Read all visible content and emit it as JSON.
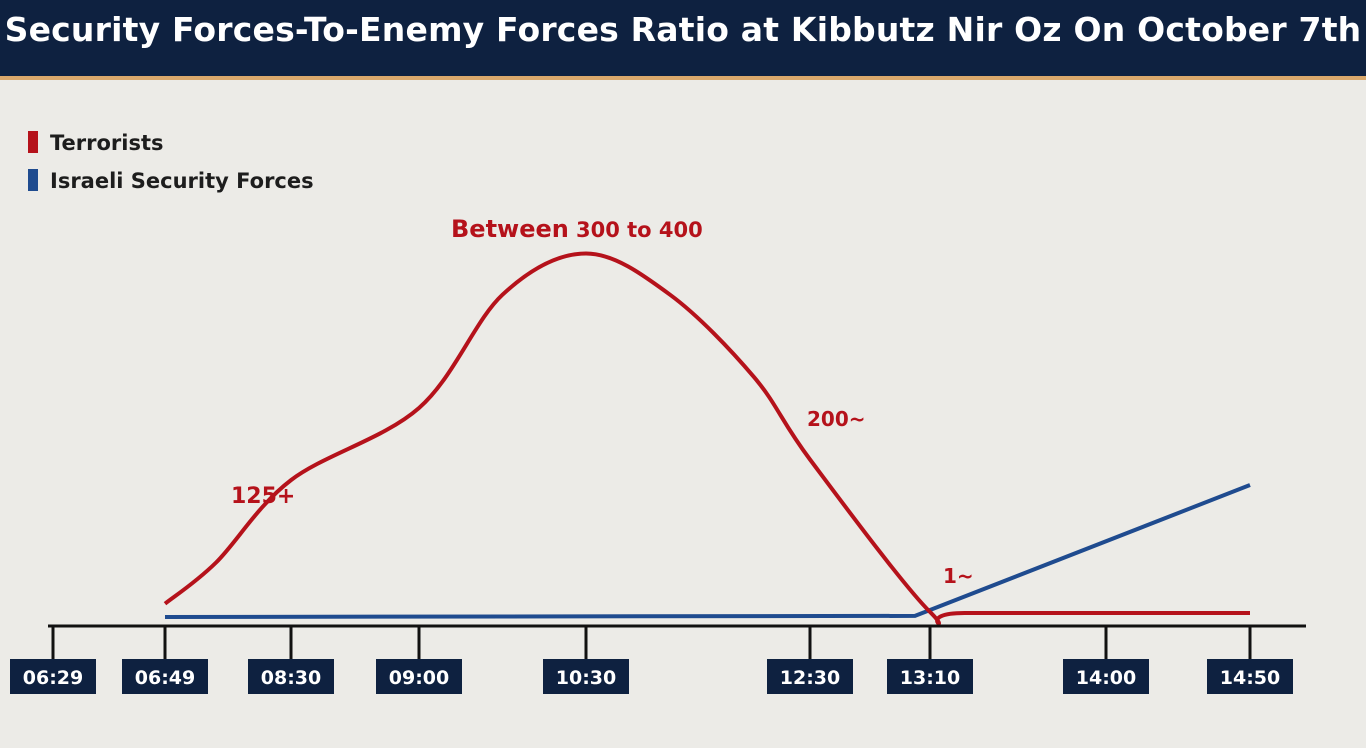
{
  "header": {
    "title": "Security Forces-To-Enemy Forces Ratio at Kibbutz Nir Oz On October 7th"
  },
  "colors": {
    "terrorists": "#b5121b",
    "security": "#1f4b8f",
    "header_bg": "#0e2140",
    "tick_box": "#0e2140"
  },
  "chart_data": {
    "type": "line",
    "title": "Security Forces-To-Enemy Forces Ratio at Kibbutz Nir Oz On October 7th",
    "legend_position": "top-left",
    "grid": false,
    "x_ticks": [
      "06:29",
      "06:49",
      "08:30",
      "09:00",
      "10:30",
      "12:30",
      "13:10",
      "14:00",
      "14:50"
    ],
    "series": [
      {
        "name": "Terrorists",
        "color": "#b5121b",
        "points": [
          {
            "x": "06:49",
            "y": 10
          },
          {
            "x": "07:30",
            "y": 50
          },
          {
            "x": "08:30",
            "y": 130
          },
          {
            "x": "09:00",
            "y": 200
          },
          {
            "x": "09:45",
            "y": 310
          },
          {
            "x": "10:30",
            "y": 350
          },
          {
            "x": "11:15",
            "y": 310
          },
          {
            "x": "12:00",
            "y": 230
          },
          {
            "x": "12:30",
            "y": 150
          },
          {
            "x": "13:10",
            "y": 2
          },
          {
            "x": "13:20",
            "y": 1
          },
          {
            "x": "14:50",
            "y": 1
          }
        ]
      },
      {
        "name": "Israeli Security Forces",
        "color": "#1f4b8f",
        "points": [
          {
            "x": "06:49",
            "y": 0
          },
          {
            "x": "13:05",
            "y": 1
          },
          {
            "x": "14:50",
            "y": 120
          }
        ]
      }
    ],
    "annotations": [
      {
        "text": "125+",
        "series": "Terrorists"
      },
      {
        "text": "Between",
        "series": "Terrorists"
      },
      {
        "text": "300 to 400",
        "series": "Terrorists"
      },
      {
        "text": "200~",
        "series": "Terrorists"
      },
      {
        "text": "1~",
        "series": "Terrorists"
      }
    ]
  }
}
